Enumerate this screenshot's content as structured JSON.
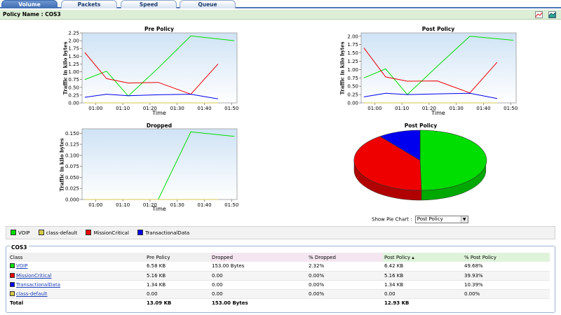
{
  "tabs": [
    {
      "label": "Volume",
      "active": true
    },
    {
      "label": "Packets",
      "active": false
    },
    {
      "label": "Speed",
      "active": false
    },
    {
      "label": "Queue",
      "active": false
    }
  ],
  "policy_name": "Policy Name : COS3",
  "toolbar_icons": [
    "line-chart-icon",
    "area-chart-icon"
  ],
  "colors": {
    "VOIP": "#00dd00",
    "class-default": "#d4c84a",
    "MissionCritical": "#ee0000",
    "TransactionalData": "#0000ee"
  },
  "chart_data": [
    {
      "type": "line",
      "title": "Pre Policy",
      "xlabel": "Time",
      "ylabel": "Traffic in kilo bytes",
      "x_ticks": [
        "01:00",
        "01:10",
        "01:20",
        "01:30",
        "01:40",
        "01:50"
      ],
      "y_ticks": [
        "0.00",
        "0.25",
        "0.50",
        "0.75",
        "1.00",
        "1.25",
        "1.50",
        "1.75",
        "2.00",
        "2.25"
      ],
      "xlim": [
        "00:55",
        "01:52"
      ],
      "ylim": [
        0,
        2.25
      ],
      "series": [
        {
          "name": "VOIP",
          "x": [
            "00:56",
            "01:04",
            "01:12",
            "01:23",
            "01:35",
            "01:51"
          ],
          "y": [
            0.75,
            1.02,
            0.22,
            1.12,
            2.15,
            2.0
          ]
        },
        {
          "name": "class-default",
          "x": [
            "00:56",
            "01:04",
            "01:12",
            "01:23",
            "01:35",
            "01:45"
          ],
          "y": [
            0.0,
            0.0,
            0.0,
            0.0,
            0.0,
            0.0
          ]
        },
        {
          "name": "MissionCritical",
          "x": [
            "00:56",
            "01:04",
            "01:12",
            "01:23",
            "01:35",
            "01:45"
          ],
          "y": [
            1.62,
            0.78,
            0.64,
            0.66,
            0.28,
            1.25
          ]
        },
        {
          "name": "TransactionalData",
          "x": [
            "00:56",
            "01:04",
            "01:12",
            "01:23",
            "01:35",
            "01:45"
          ],
          "y": [
            0.18,
            0.28,
            0.23,
            0.26,
            0.28,
            0.13
          ]
        }
      ]
    },
    {
      "type": "line",
      "title": "Post Policy",
      "xlabel": "Time",
      "ylabel": "Traffic in kilo bytes",
      "x_ticks": [
        "01:00",
        "01:10",
        "01:20",
        "01:30",
        "01:40",
        "01:50"
      ],
      "y_ticks": [
        "0.00",
        "0.25",
        "0.50",
        "0.75",
        "1.00",
        "1.25",
        "1.50",
        "1.75",
        "2.00"
      ],
      "xlim": [
        "00:55",
        "01:52"
      ],
      "ylim": [
        0,
        2.1
      ],
      "series": [
        {
          "name": "VOIP",
          "x": [
            "00:56",
            "01:04",
            "01:12",
            "01:23",
            "01:35",
            "01:51"
          ],
          "y": [
            0.75,
            1.02,
            0.25,
            1.1,
            2.0,
            1.88
          ]
        },
        {
          "name": "class-default",
          "x": [
            "00:56",
            "01:04",
            "01:12",
            "01:23",
            "01:35",
            "01:45"
          ],
          "y": [
            0.0,
            0.0,
            0.0,
            0.0,
            0.0,
            0.0
          ]
        },
        {
          "name": "MissionCritical",
          "x": [
            "00:56",
            "01:04",
            "01:12",
            "01:23",
            "01:35",
            "01:45"
          ],
          "y": [
            1.65,
            0.78,
            0.65,
            0.66,
            0.3,
            1.22
          ]
        },
        {
          "name": "TransactionalData",
          "x": [
            "00:56",
            "01:04",
            "01:12",
            "01:23",
            "01:35",
            "01:45"
          ],
          "y": [
            0.18,
            0.29,
            0.25,
            0.27,
            0.29,
            0.13
          ]
        }
      ]
    },
    {
      "type": "line",
      "title": "Dropped",
      "xlabel": "Time",
      "ylabel": "Traffic in kilo bytes",
      "x_ticks": [
        "01:00",
        "01:10",
        "01:20",
        "01:30",
        "01:40",
        "01:50"
      ],
      "y_ticks": [
        "0.000",
        "0.025",
        "0.050",
        "0.075",
        "0.100",
        "0.125",
        "0.150"
      ],
      "xlim": [
        "00:55",
        "01:52"
      ],
      "ylim": [
        0,
        0.16
      ],
      "series": [
        {
          "name": "VOIP",
          "x": [
            "00:56",
            "01:04",
            "01:12",
            "01:23",
            "01:35",
            "01:51"
          ],
          "y": [
            0.0,
            0.0,
            0.0,
            0.0,
            0.153,
            0.143
          ]
        },
        {
          "name": "class-default",
          "x": [
            "00:56",
            "01:04",
            "01:12",
            "01:23",
            "01:35",
            "01:45"
          ],
          "y": [
            0.0,
            0.0,
            0.0,
            0.0,
            0.0,
            0.0
          ]
        }
      ]
    },
    {
      "type": "pie",
      "title": "Post Policy",
      "slices": [
        {
          "name": "VOIP",
          "value": 49.68
        },
        {
          "name": "MissionCritical",
          "value": 39.93
        },
        {
          "name": "TransactionalData",
          "value": 10.39
        },
        {
          "name": "class-default",
          "value": 0.0
        }
      ]
    }
  ],
  "legend": [
    "VOIP",
    "class-default",
    "MissionCritical",
    "TransactionalData"
  ],
  "pie_selector": {
    "label": "Show Pie Chart :",
    "selected": "Post Policy"
  },
  "table": {
    "group": "COS3",
    "headers": [
      "Class",
      "Pre Policy",
      "Dropped",
      "% Dropped",
      "Post Policy ▴",
      "% Post Policy"
    ],
    "rows": [
      {
        "class": "VOIP",
        "pre": "6.58 KB",
        "dropped": "153.00 Bytes",
        "pct_dropped": "2.32%",
        "post": "6.42 KB",
        "pct_post": "49.68%"
      },
      {
        "class": "MissionCritical",
        "pre": "5.16 KB",
        "dropped": "0.00",
        "pct_dropped": "0.00%",
        "post": "5.16 KB",
        "pct_post": "39.93%"
      },
      {
        "class": "TransactionalData",
        "pre": "1.34 KB",
        "dropped": "0.00",
        "pct_dropped": "0.00%",
        "post": "1.34 KB",
        "pct_post": "10.39%"
      },
      {
        "class": "class-default",
        "pre": "0.00",
        "dropped": "0.00",
        "pct_dropped": "0.00%",
        "post": "0.00",
        "pct_post": "0.00%"
      }
    ],
    "total": {
      "label": "Total",
      "pre": "13.09 KB",
      "dropped": "153.00 Bytes",
      "pct_dropped": "",
      "post": "12.93 KB",
      "pct_post": ""
    }
  }
}
